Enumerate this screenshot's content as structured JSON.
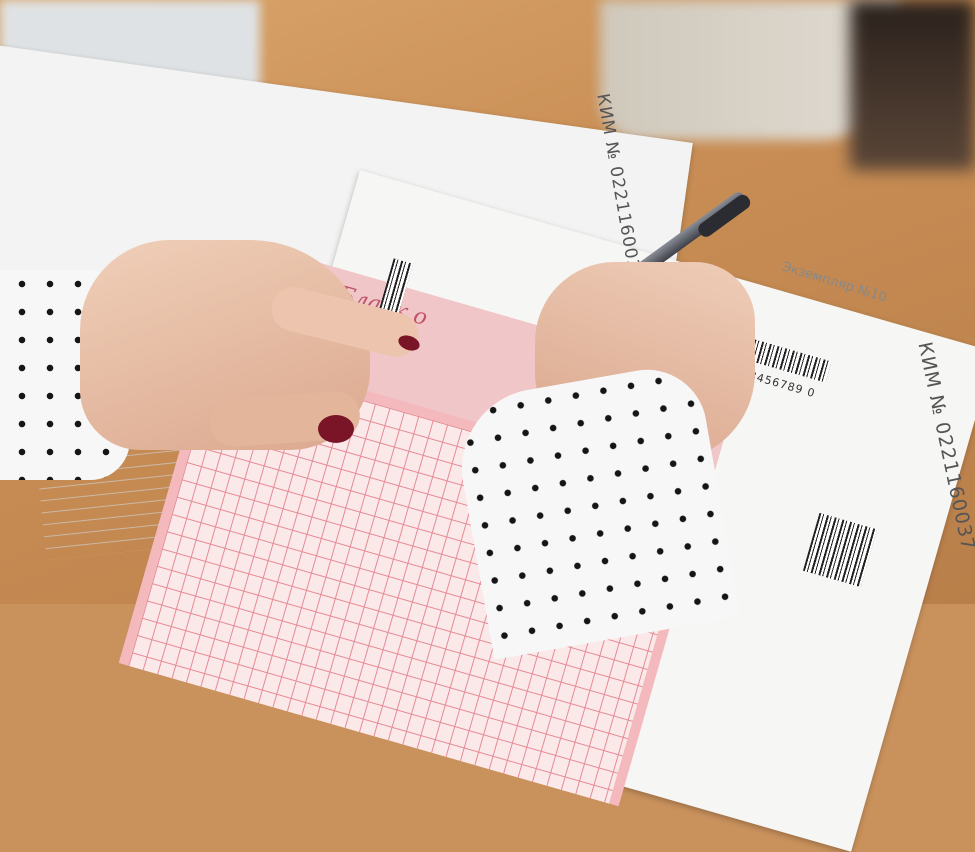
{
  "scene": {
    "top_sheet_code": "КИМ № 0221160037",
    "right_sheet_code": "КИМ № 0221160037",
    "copy_label": "Экземпляр №10",
    "form_title": "Бланк о",
    "digits_sample": "3456789 0"
  },
  "colors": {
    "desk": "#c98e55",
    "form_pink": "#f3b9bd",
    "nail_polish": "#7a1528",
    "sleeve_dots": "#151515"
  }
}
